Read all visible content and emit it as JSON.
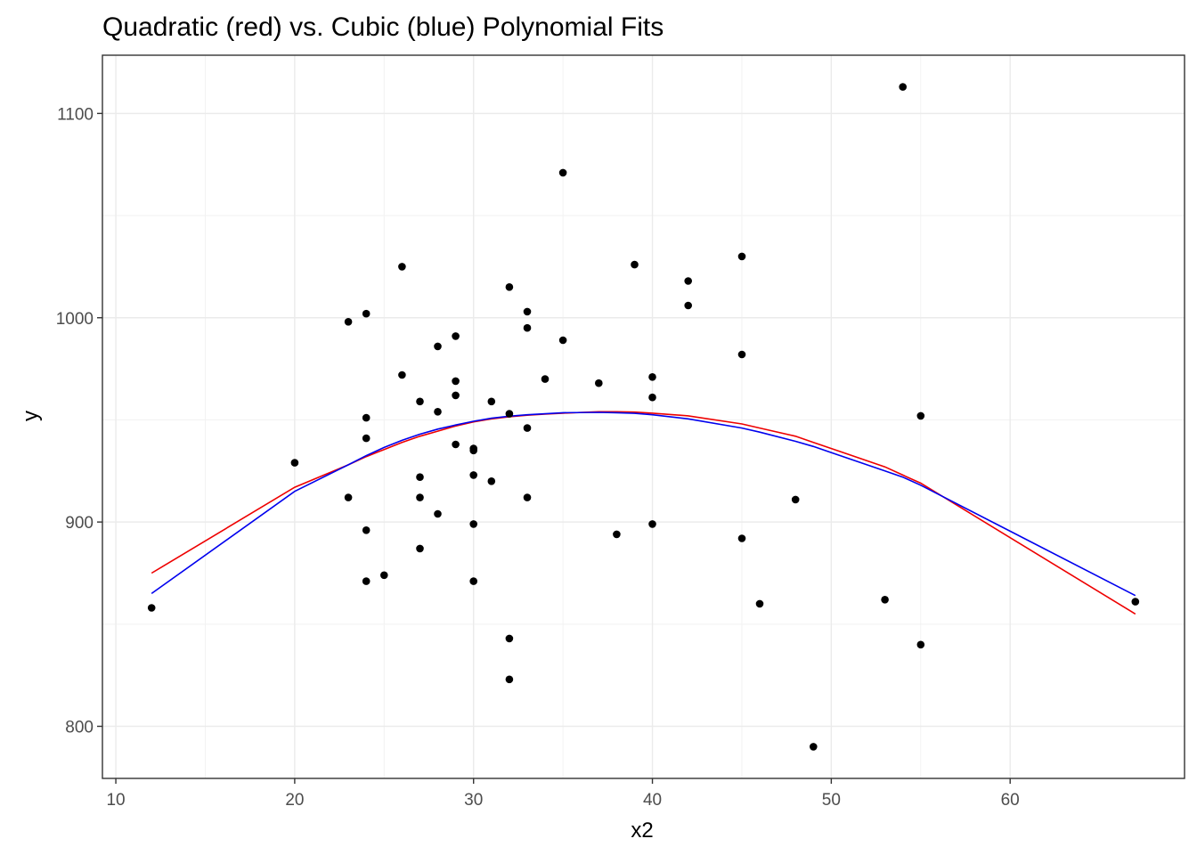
{
  "chart_data": {
    "type": "scatter",
    "title": "Quadratic (red) vs. Cubic (blue) Polynomial Fits",
    "xlabel": "x2",
    "ylabel": "y",
    "xlim": [
      9.25,
      69.75
    ],
    "ylim": [
      774.5,
      1128.5
    ],
    "grid": true,
    "x_ticks": [
      10,
      20,
      30,
      40,
      50,
      60
    ],
    "y_ticks": [
      800,
      900,
      1000,
      1100
    ],
    "points": [
      [
        12,
        858
      ],
      [
        20,
        929
      ],
      [
        23,
        998
      ],
      [
        23,
        912
      ],
      [
        24,
        1002
      ],
      [
        24,
        951
      ],
      [
        24,
        941
      ],
      [
        24,
        896
      ],
      [
        24,
        871
      ],
      [
        25,
        874
      ],
      [
        26,
        1025
      ],
      [
        26,
        972
      ],
      [
        27,
        959
      ],
      [
        27,
        922
      ],
      [
        27,
        912
      ],
      [
        27,
        887
      ],
      [
        28,
        986
      ],
      [
        28,
        954
      ],
      [
        28,
        904
      ],
      [
        29,
        991
      ],
      [
        29,
        969
      ],
      [
        29,
        962
      ],
      [
        29,
        938
      ],
      [
        30,
        936
      ],
      [
        30,
        935
      ],
      [
        30,
        923
      ],
      [
        30,
        899
      ],
      [
        30,
        871
      ],
      [
        31,
        959
      ],
      [
        31,
        920
      ],
      [
        32,
        1015
      ],
      [
        32,
        953
      ],
      [
        32,
        843
      ],
      [
        32,
        823
      ],
      [
        33,
        1003
      ],
      [
        33,
        995
      ],
      [
        33,
        946
      ],
      [
        33,
        912
      ],
      [
        34,
        970
      ],
      [
        35,
        1071
      ],
      [
        35,
        989
      ],
      [
        37,
        968
      ],
      [
        38,
        894
      ],
      [
        39,
        1026
      ],
      [
        40,
        971
      ],
      [
        40,
        961
      ],
      [
        40,
        899
      ],
      [
        42,
        1018
      ],
      [
        42,
        1006
      ],
      [
        45,
        1030
      ],
      [
        45,
        982
      ],
      [
        45,
        892
      ],
      [
        46,
        860
      ],
      [
        48,
        911
      ],
      [
        49,
        790
      ],
      [
        53,
        862
      ],
      [
        54,
        1113
      ],
      [
        55,
        952
      ],
      [
        55,
        840
      ],
      [
        67,
        861
      ]
    ],
    "series": [
      {
        "color": "#ee0000",
        "x": [
          12,
          20,
          23,
          24,
          25,
          26,
          27,
          28,
          29,
          30,
          31,
          32,
          33,
          34,
          35,
          37,
          38,
          39,
          40,
          42,
          45,
          46,
          48,
          49,
          53,
          54,
          55,
          67
        ],
        "y": [
          875,
          917,
          928,
          932,
          935.5,
          939,
          942,
          944.5,
          947,
          949,
          950.5,
          951.5,
          952.3,
          952.8,
          953.3,
          954,
          954,
          953.8,
          953.3,
          952,
          948,
          946,
          942,
          939,
          927,
          923,
          919,
          855
        ]
      },
      {
        "color": "#0000ee",
        "x": [
          12,
          20,
          23,
          24,
          25,
          26,
          27,
          28,
          29,
          30,
          31,
          32,
          33,
          34,
          35,
          37,
          38,
          39,
          40,
          42,
          45,
          46,
          48,
          49,
          53,
          54,
          55,
          67
        ],
        "y": [
          865,
          915,
          928,
          932.5,
          936.5,
          940,
          943,
          945.5,
          947.5,
          949.3,
          950.8,
          951.8,
          952.5,
          953,
          953.5,
          953.7,
          953.5,
          953.2,
          952.5,
          950.5,
          946,
          944,
          939.5,
          937,
          925,
          922,
          918,
          864
        ]
      }
    ]
  }
}
